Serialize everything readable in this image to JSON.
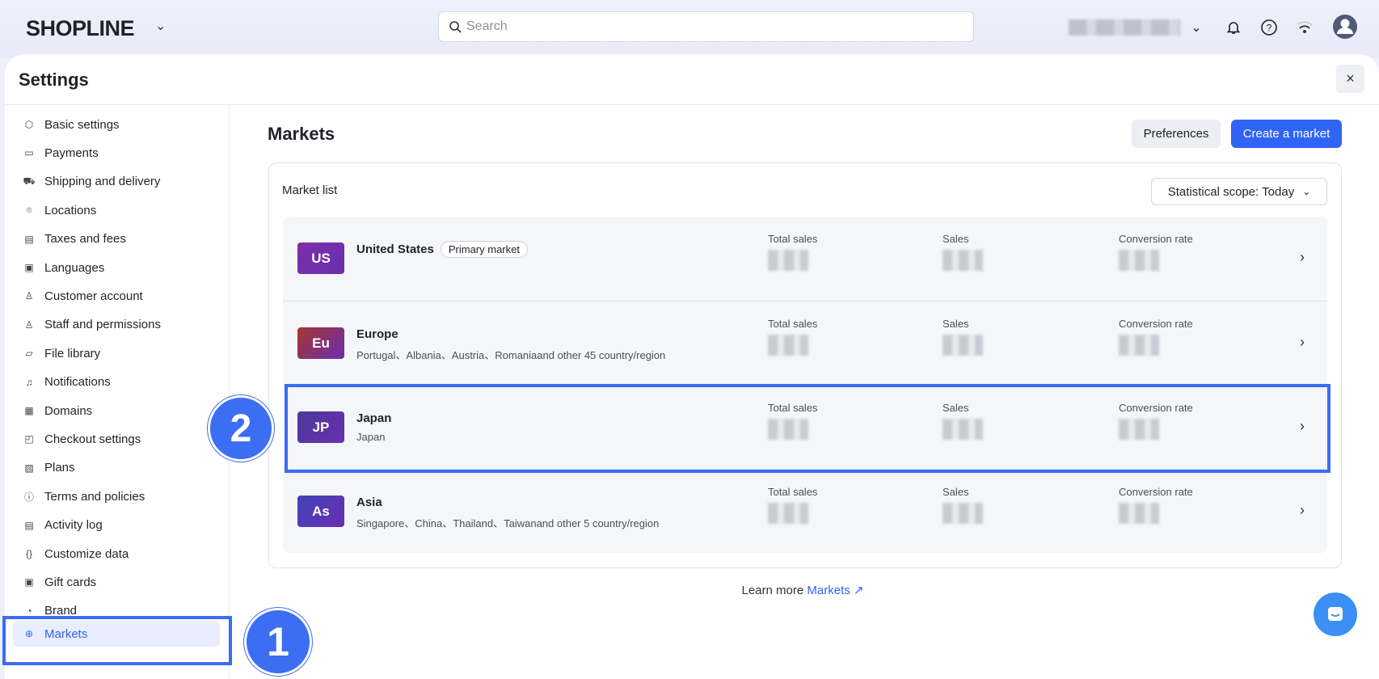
{
  "topbar": {
    "logo": "SHOPLINE",
    "search_placeholder": "Search"
  },
  "settings": {
    "title": "Settings",
    "close": "×"
  },
  "sidebar": {
    "items": [
      {
        "label": "Basic settings",
        "icon": "hexagon-icon"
      },
      {
        "label": "Payments",
        "icon": "wallet-icon"
      },
      {
        "label": "Shipping and delivery",
        "icon": "truck-icon"
      },
      {
        "label": "Locations",
        "icon": "pin-icon"
      },
      {
        "label": "Taxes and fees",
        "icon": "receipt-icon"
      },
      {
        "label": "Languages",
        "icon": "language-icon"
      },
      {
        "label": "Customer account",
        "icon": "user-icon"
      },
      {
        "label": "Staff and permissions",
        "icon": "staff-icon"
      },
      {
        "label": "File library",
        "icon": "folder-icon"
      },
      {
        "label": "Notifications",
        "icon": "bell-icon"
      },
      {
        "label": "Domains",
        "icon": "domain-icon"
      },
      {
        "label": "Checkout settings",
        "icon": "bag-icon"
      },
      {
        "label": "Plans",
        "icon": "plan-icon"
      },
      {
        "label": "Terms and policies",
        "icon": "info-icon"
      },
      {
        "label": "Activity log",
        "icon": "log-icon"
      },
      {
        "label": "Customize data",
        "icon": "braces-icon"
      },
      {
        "label": "Gift cards",
        "icon": "gift-card-icon"
      },
      {
        "label": "Brand",
        "icon": "brand-icon"
      },
      {
        "label": "Markets",
        "icon": "globe-icon",
        "active": true
      }
    ]
  },
  "main": {
    "title": "Markets",
    "preferences": "Preferences",
    "create": "Create a market",
    "list_label": "Market list",
    "scope": "Statistical scope: Today",
    "stat_labels": [
      "Total sales",
      "Sales",
      "Conversion rate"
    ],
    "markets": [
      {
        "code": "US",
        "name": "United States",
        "badge": "Primary market",
        "sub": "",
        "color": "#7b2fa8"
      },
      {
        "code": "Eu",
        "name": "Europe",
        "badge": "",
        "sub": "Portugal、Albania、Austria、Romaniaand other 45 country/region",
        "color": "#a5362f"
      },
      {
        "code": "JP",
        "name": "Japan",
        "badge": "",
        "sub": "Japan",
        "color": "#4b3a9a"
      },
      {
        "code": "As",
        "name": "Asia",
        "badge": "",
        "sub": "Singapore、China、Thailand、Taiwanand other 5 country/region",
        "color": "#3f44b8"
      }
    ],
    "learn_more": "Learn more",
    "learn_link": "Markets"
  },
  "annotations": {
    "step1": "1",
    "step2": "2",
    "color": "#3a6cf4"
  }
}
